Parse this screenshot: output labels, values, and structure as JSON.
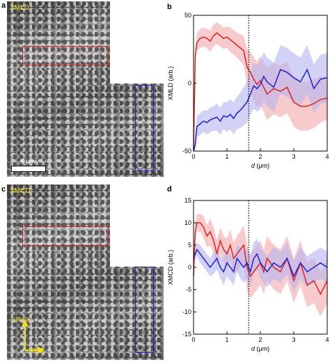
{
  "panels": {
    "a": {
      "letter": "a",
      "label": "XMLD",
      "scale_label": "5 μm"
    },
    "b": {
      "letter": "b"
    },
    "c": {
      "letter": "c",
      "label": "XMCD",
      "axis_up": "[1̄010]",
      "axis_right": "[2̄110]"
    },
    "d": {
      "letter": "d"
    }
  },
  "colors": {
    "red": "#e02020",
    "blue": "#2020d0",
    "red_band": "#f2a9a9",
    "blue_band": "#b4b4f2",
    "arrow": "#3b6ab0",
    "label": "#f0e020"
  },
  "chart_data": [
    {
      "type": "line",
      "panel": "b",
      "xlabel": "d (μm)",
      "ylabel": "XMLD (arb.)",
      "xlim": [
        0,
        4
      ],
      "ylim": [
        -50,
        50
      ],
      "xticks": [
        0,
        1,
        2,
        3,
        4
      ],
      "yticks": [
        -50,
        0,
        50
      ],
      "vline": 1.65,
      "series": [
        {
          "color": "#e02020",
          "x": [
            0,
            0.05,
            0.1,
            0.2,
            0.3,
            0.4,
            0.5,
            0.6,
            0.7,
            0.8,
            0.9,
            1.0,
            1.1,
            1.2,
            1.3,
            1.4,
            1.5,
            1.6,
            1.7,
            1.8,
            1.9,
            2.0,
            2.1,
            2.2,
            2.4,
            2.6,
            2.8,
            3.0,
            3.2,
            3.4,
            3.6,
            3.8,
            4.0
          ],
          "y": [
            -50,
            20,
            30,
            33,
            34,
            33,
            31,
            35,
            37,
            35,
            33,
            34,
            32,
            30,
            28,
            26,
            24,
            12,
            8,
            3,
            -1,
            2,
            -3,
            -8,
            -4,
            -6,
            -3,
            -14,
            -17,
            -17,
            -15,
            -12,
            -11
          ],
          "err": [
            0,
            6,
            6,
            7,
            7,
            7,
            8,
            8,
            8,
            8,
            8,
            8,
            9,
            9,
            9,
            10,
            11,
            13,
            15,
            16,
            17,
            18,
            18,
            19,
            19,
            19,
            19,
            18,
            18,
            18,
            18,
            17,
            16
          ]
        },
        {
          "color": "#2020d0",
          "x": [
            0,
            0.05,
            0.1,
            0.2,
            0.3,
            0.4,
            0.5,
            0.6,
            0.7,
            0.8,
            0.9,
            1.0,
            1.1,
            1.2,
            1.3,
            1.4,
            1.5,
            1.6,
            1.7,
            1.8,
            1.9,
            2.0,
            2.1,
            2.2,
            2.4,
            2.6,
            2.8,
            3.0,
            3.2,
            3.4,
            3.6,
            3.8,
            4.0
          ],
          "y": [
            -50,
            -45,
            -32,
            -30,
            -28,
            -29,
            -27,
            -26,
            -25,
            -28,
            -24,
            -25,
            -23,
            -26,
            -22,
            -20,
            -17,
            -14,
            -8,
            -2,
            -4,
            -1,
            5,
            1,
            -3,
            10,
            8,
            4,
            1,
            10,
            -4,
            3,
            4
          ],
          "err": [
            0,
            7,
            8,
            8,
            8,
            9,
            9,
            9,
            10,
            10,
            10,
            11,
            11,
            12,
            12,
            13,
            14,
            15,
            16,
            17,
            17,
            18,
            18,
            18,
            18,
            18,
            18,
            18,
            18,
            18,
            18,
            18,
            18
          ]
        }
      ]
    },
    {
      "type": "line",
      "panel": "d",
      "xlabel": "d (μm)",
      "ylabel": "XMCD (arb.)",
      "xlim": [
        0,
        4
      ],
      "ylim": [
        -15,
        15
      ],
      "xticks": [
        0,
        1,
        2,
        3,
        4
      ],
      "yticks": [
        -15,
        -10,
        -5,
        0,
        5,
        10,
        15
      ],
      "vline": 1.65,
      "series": [
        {
          "color": "#e02020",
          "x": [
            0,
            0.05,
            0.1,
            0.2,
            0.3,
            0.4,
            0.5,
            0.6,
            0.7,
            0.8,
            0.9,
            1.0,
            1.1,
            1.2,
            1.3,
            1.4,
            1.5,
            1.6,
            1.7,
            1.8,
            1.9,
            2.0,
            2.1,
            2.2,
            2.4,
            2.6,
            2.8,
            3.0,
            3.2,
            3.4,
            3.6,
            3.8,
            4.0
          ],
          "y": [
            -2,
            8,
            10,
            10,
            9,
            7,
            8,
            6,
            3,
            6,
            4,
            3,
            5,
            2,
            3,
            4,
            5,
            0,
            -2,
            -1,
            0,
            1,
            -1,
            2,
            0,
            -1,
            2,
            -3,
            1,
            -4,
            -3,
            -6,
            -3
          ],
          "err": [
            1,
            2,
            2,
            2,
            2.5,
            2.5,
            3,
            3,
            3,
            3,
            3,
            3.5,
            3.5,
            3.5,
            4,
            4,
            4.5,
            5,
            5,
            5,
            5,
            5,
            5,
            5,
            5,
            5,
            5,
            5,
            5,
            5,
            5,
            5,
            5
          ]
        },
        {
          "color": "#2020d0",
          "x": [
            0,
            0.05,
            0.1,
            0.2,
            0.3,
            0.4,
            0.5,
            0.6,
            0.7,
            0.8,
            0.9,
            1.0,
            1.1,
            1.2,
            1.3,
            1.4,
            1.5,
            1.6,
            1.7,
            1.8,
            1.9,
            2.0,
            2.1,
            2.2,
            2.4,
            2.6,
            2.8,
            3.0,
            3.2,
            3.4,
            3.6,
            3.8,
            4.0
          ],
          "y": [
            2,
            3,
            4,
            3,
            2,
            1,
            0,
            1,
            2,
            0,
            -1,
            1,
            0,
            -1,
            2,
            1,
            0,
            1,
            -1,
            2,
            3,
            1,
            0,
            -1,
            1,
            0,
            2,
            -2,
            1,
            -1,
            0,
            1,
            0
          ],
          "err": [
            1,
            1.5,
            1.5,
            2,
            2,
            2,
            2,
            2.5,
            2.5,
            2.5,
            3,
            3,
            3,
            3,
            3,
            3.5,
            3.5,
            3.5,
            3.5,
            3.5,
            3.5,
            3.5,
            3.5,
            3.5,
            3.5,
            3.5,
            3.5,
            3.5,
            3.5,
            3.5,
            3.5,
            3.5,
            3.5
          ]
        }
      ]
    }
  ]
}
